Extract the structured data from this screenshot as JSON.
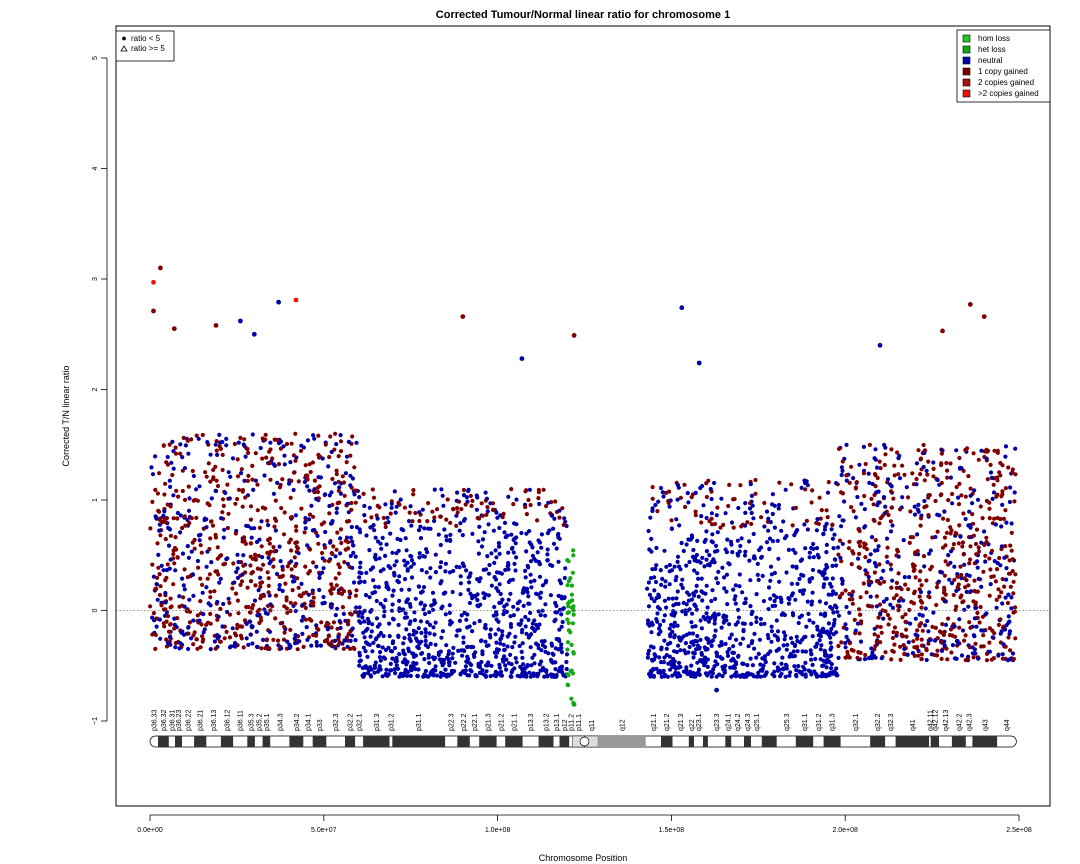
{
  "chart_data": {
    "type": "scatter",
    "title": "Corrected Tumour/Normal linear ratio for chromosome  1",
    "xlabel": "Chromosome Position",
    "ylabel": "Corrected T/N linear ratio",
    "xlim": [
      0,
      250000000
    ],
    "ylim": [
      -1.8,
      5.2
    ],
    "x_ticks": [
      0,
      50000000,
      100000000,
      150000000,
      200000000,
      250000000
    ],
    "x_tick_labels": [
      "0.0e+00",
      "5.0e+07",
      "1.0e+08",
      "1.5e+08",
      "2.0e+08",
      "2.5e+08"
    ],
    "y_ticks": [
      -1,
      0,
      1,
      2,
      3,
      4,
      5
    ],
    "y_tick_labels": [
      "−1",
      "0",
      "1",
      "2",
      "3",
      "4",
      "5"
    ],
    "reference_line_y": 0,
    "shape_legend": {
      "position": "top-left",
      "entries": [
        {
          "symbol": "circle",
          "label": "ratio < 5"
        },
        {
          "symbol": "triangle",
          "label": "ratio >= 5"
        }
      ]
    },
    "color_legend": {
      "position": "top-right",
      "entries": [
        {
          "label": "hom loss",
          "color": "#22cc22"
        },
        {
          "label": "het loss",
          "color": "#11aa11"
        },
        {
          "label": "neutral",
          "color": "#0000aa"
        },
        {
          "label": "1 copy gained",
          "color": "#800000"
        },
        {
          "label": "2 copies gained",
          "color": "#aa1111"
        },
        {
          "label": ">2 copies gained",
          "color": "#ee1111"
        }
      ]
    },
    "data_density_regions": [
      {
        "x_start": 0,
        "x_end": 5000000,
        "y_low": -0.35,
        "y_high": 1.5,
        "state": "mixed"
      },
      {
        "x_start": 5000000,
        "x_end": 60000000,
        "y_low": -0.35,
        "y_high": 1.6,
        "state": "1 copy gained"
      },
      {
        "x_start": 60000000,
        "x_end": 120000000,
        "y_low": -0.6,
        "y_high": 1.1,
        "state": "neutral"
      },
      {
        "x_start": 120000000,
        "x_end": 122000000,
        "y_low": -0.85,
        "y_high": 0.6,
        "state": "het loss"
      },
      {
        "x_start": 143000000,
        "x_end": 198000000,
        "y_low": -0.6,
        "y_high": 1.2,
        "state": "neutral"
      },
      {
        "x_start": 198000000,
        "x_end": 249000000,
        "y_low": -0.45,
        "y_high": 1.5,
        "state": "1 copy gained"
      }
    ],
    "notable_points": [
      {
        "x": 1000000,
        "y": 2.97,
        "state": ">2 copies gained"
      },
      {
        "x": 3000000,
        "y": 3.1,
        "state": "1 copy gained"
      },
      {
        "x": 1000000,
        "y": 2.71,
        "state": "1 copy gained"
      },
      {
        "x": 7000000,
        "y": 2.55,
        "state": "1 copy gained"
      },
      {
        "x": 19000000,
        "y": 2.58,
        "state": "1 copy gained"
      },
      {
        "x": 26000000,
        "y": 2.62,
        "state": "neutral"
      },
      {
        "x": 30000000,
        "y": 2.5,
        "state": "neutral"
      },
      {
        "x": 37000000,
        "y": 2.79,
        "state": "neutral"
      },
      {
        "x": 42000000,
        "y": 2.81,
        "state": ">2 copies gained"
      },
      {
        "x": 90000000,
        "y": 2.66,
        "state": "1 copy gained"
      },
      {
        "x": 107000000,
        "y": 2.28,
        "state": "neutral"
      },
      {
        "x": 122000000,
        "y": 2.49,
        "state": "1 copy gained"
      },
      {
        "x": 153000000,
        "y": 2.74,
        "state": "neutral"
      },
      {
        "x": 158000000,
        "y": 2.24,
        "state": "neutral"
      },
      {
        "x": 210000000,
        "y": 2.4,
        "state": "neutral"
      },
      {
        "x": 228000000,
        "y": 2.53,
        "state": "1 copy gained"
      },
      {
        "x": 236000000,
        "y": 2.77,
        "state": "1 copy gained"
      },
      {
        "x": 240000000,
        "y": 2.66,
        "state": "1 copy gained"
      },
      {
        "x": 122000000,
        "y": -0.85,
        "state": "het loss"
      },
      {
        "x": 163000000,
        "y": -0.72,
        "state": "neutral"
      }
    ],
    "ideogram": {
      "bands": [
        {
          "label": "p36.33",
          "start": 0,
          "end": 2300000,
          "stain": "gneg"
        },
        {
          "label": "p36.32",
          "start": 2300000,
          "end": 5400000,
          "stain": "gpos"
        },
        {
          "label": "p36.31",
          "start": 5400000,
          "end": 7200000,
          "stain": "gneg"
        },
        {
          "label": "p36.23",
          "start": 7200000,
          "end": 9200000,
          "stain": "gpos"
        },
        {
          "label": "p36.22",
          "start": 9200000,
          "end": 12700000,
          "stain": "gneg"
        },
        {
          "label": "p36.21",
          "start": 12700000,
          "end": 16200000,
          "stain": "gpos"
        },
        {
          "label": "p36.13",
          "start": 16200000,
          "end": 20400000,
          "stain": "gneg"
        },
        {
          "label": "p36.12",
          "start": 20400000,
          "end": 23900000,
          "stain": "gpos"
        },
        {
          "label": "p36.11",
          "start": 23900000,
          "end": 28000000,
          "stain": "gneg"
        },
        {
          "label": "p35.3",
          "start": 28000000,
          "end": 30200000,
          "stain": "gpos"
        },
        {
          "label": "p35.2",
          "start": 30200000,
          "end": 32400000,
          "stain": "gneg"
        },
        {
          "label": "p35.1",
          "start": 32400000,
          "end": 34600000,
          "stain": "gpos"
        },
        {
          "label": "p34.3",
          "start": 34600000,
          "end": 40100000,
          "stain": "gneg"
        },
        {
          "label": "p34.2",
          "start": 40100000,
          "end": 44100000,
          "stain": "gpos"
        },
        {
          "label": "p34.1",
          "start": 44100000,
          "end": 46800000,
          "stain": "gneg"
        },
        {
          "label": "p33",
          "start": 46800000,
          "end": 50700000,
          "stain": "gpos"
        },
        {
          "label": "p32.3",
          "start": 50700000,
          "end": 56100000,
          "stain": "gneg"
        },
        {
          "label": "p32.2",
          "start": 56100000,
          "end": 59000000,
          "stain": "gpos"
        },
        {
          "label": "p32.1",
          "start": 59000000,
          "end": 61300000,
          "stain": "gneg"
        },
        {
          "label": "p31.3",
          "start": 61300000,
          "end": 68900000,
          "stain": "gpos"
        },
        {
          "label": "p31.2",
          "start": 68900000,
          "end": 69700000,
          "stain": "gneg"
        },
        {
          "label": "p31.1",
          "start": 69700000,
          "end": 84900000,
          "stain": "gpos"
        },
        {
          "label": "p22.3",
          "start": 84900000,
          "end": 88400000,
          "stain": "gneg"
        },
        {
          "label": "p22.2",
          "start": 88400000,
          "end": 92000000,
          "stain": "gpos"
        },
        {
          "label": "p22.1",
          "start": 92000000,
          "end": 94700000,
          "stain": "gneg"
        },
        {
          "label": "p21.3",
          "start": 94700000,
          "end": 99700000,
          "stain": "gpos"
        },
        {
          "label": "p21.2",
          "start": 99700000,
          "end": 102200000,
          "stain": "gneg"
        },
        {
          "label": "p21.1",
          "start": 102200000,
          "end": 107200000,
          "stain": "gpos"
        },
        {
          "label": "p13.3",
          "start": 107200000,
          "end": 111800000,
          "stain": "gneg"
        },
        {
          "label": "p13.2",
          "start": 111800000,
          "end": 116100000,
          "stain": "gpos"
        },
        {
          "label": "p13.1",
          "start": 116100000,
          "end": 117800000,
          "stain": "gneg"
        },
        {
          "label": "p12",
          "start": 117800000,
          "end": 120600000,
          "stain": "gpos"
        },
        {
          "label": "p11.2",
          "start": 120600000,
          "end": 121500000,
          "stain": "gneg"
        },
        {
          "label": "p11.1",
          "start": 121500000,
          "end": 125000000,
          "stain": "acen"
        },
        {
          "label": "q11",
          "start": 125000000,
          "end": 128900000,
          "stain": "acen"
        },
        {
          "label": "q12",
          "start": 128900000,
          "end": 142600000,
          "stain": "gvar"
        },
        {
          "label": "q21.1",
          "start": 142600000,
          "end": 147000000,
          "stain": "gneg"
        },
        {
          "label": "q21.2",
          "start": 147000000,
          "end": 150300000,
          "stain": "gpos"
        },
        {
          "label": "q21.3",
          "start": 150300000,
          "end": 155000000,
          "stain": "gneg"
        },
        {
          "label": "q22",
          "start": 155000000,
          "end": 156500000,
          "stain": "gpos"
        },
        {
          "label": "q23.1",
          "start": 156500000,
          "end": 159100000,
          "stain": "gneg"
        },
        {
          "label": "q23.2",
          "start": 159100000,
          "end": 160500000,
          "stain": "gpos"
        },
        {
          "label": "q23.3",
          "start": 160500000,
          "end": 165500000,
          "stain": "gneg"
        },
        {
          "label": "q24.1",
          "start": 165500000,
          "end": 167200000,
          "stain": "gpos"
        },
        {
          "label": "q24.2",
          "start": 167200000,
          "end": 170900000,
          "stain": "gneg"
        },
        {
          "label": "q24.3",
          "start": 170900000,
          "end": 172900000,
          "stain": "gpos"
        },
        {
          "label": "q25.1",
          "start": 172900000,
          "end": 176000000,
          "stain": "gneg"
        },
        {
          "label": "q25.2",
          "start": 176000000,
          "end": 180300000,
          "stain": "gpos"
        },
        {
          "label": "q25.3",
          "start": 180300000,
          "end": 185800000,
          "stain": "gneg"
        },
        {
          "label": "q31.1",
          "start": 185800000,
          "end": 190800000,
          "stain": "gpos"
        },
        {
          "label": "q31.2",
          "start": 190800000,
          "end": 193800000,
          "stain": "gneg"
        },
        {
          "label": "q31.3",
          "start": 193800000,
          "end": 198700000,
          "stain": "gpos"
        },
        {
          "label": "q32.1",
          "start": 198700000,
          "end": 207200000,
          "stain": "gneg"
        },
        {
          "label": "q32.2",
          "start": 207200000,
          "end": 211500000,
          "stain": "gpos"
        },
        {
          "label": "q32.3",
          "start": 211500000,
          "end": 214500000,
          "stain": "gneg"
        },
        {
          "label": "q41",
          "start": 214500000,
          "end": 224100000,
          "stain": "gpos"
        },
        {
          "label": "q42.11",
          "start": 224100000,
          "end": 224600000,
          "stain": "gneg"
        },
        {
          "label": "q42.12",
          "start": 224600000,
          "end": 227000000,
          "stain": "gpos"
        },
        {
          "label": "q42.13",
          "start": 227000000,
          "end": 230700000,
          "stain": "gneg"
        },
        {
          "label": "q42.2",
          "start": 230700000,
          "end": 234700000,
          "stain": "gpos"
        },
        {
          "label": "q42.3",
          "start": 234700000,
          "end": 236600000,
          "stain": "gneg"
        },
        {
          "label": "q43",
          "start": 236600000,
          "end": 243700000,
          "stain": "gpos"
        },
        {
          "label": "q44",
          "start": 243700000,
          "end": 249250621,
          "stain": "gneg"
        }
      ],
      "labeled_bands": [
        "p36.33",
        "p36.32",
        "p36.31",
        "p36.23",
        "p36.22",
        "p36.21",
        "p36.13",
        "p36.12",
        "p36.11",
        "p35.3",
        "p35.2",
        "p35.1",
        "p34.3",
        "p34.2",
        "p34.1",
        "p33",
        "p32.3",
        "p32.2",
        "p32.1",
        "p31.3",
        "p31.2",
        "p31.1",
        "p22.3",
        "p22.2",
        "p22.1",
        "p21.3",
        "p21.2",
        "p21.1",
        "p13.3",
        "p13.2",
        "p13.1",
        "p12",
        "p11.2",
        "p11.1",
        "q11",
        "q12",
        "q21.1",
        "q21.2",
        "q21.3",
        "q22",
        "q23.1",
        "q23.3",
        "q24.1",
        "q24.2",
        "q24.3",
        "q25.1",
        "q25.3",
        "q31.1",
        "q31.2",
        "q31.3",
        "q32.1",
        "q32.2",
        "q32.3",
        "q41",
        "q42.11",
        "q42.12",
        "q42.13",
        "q42.2",
        "q42.3",
        "q43",
        "q44"
      ]
    }
  }
}
